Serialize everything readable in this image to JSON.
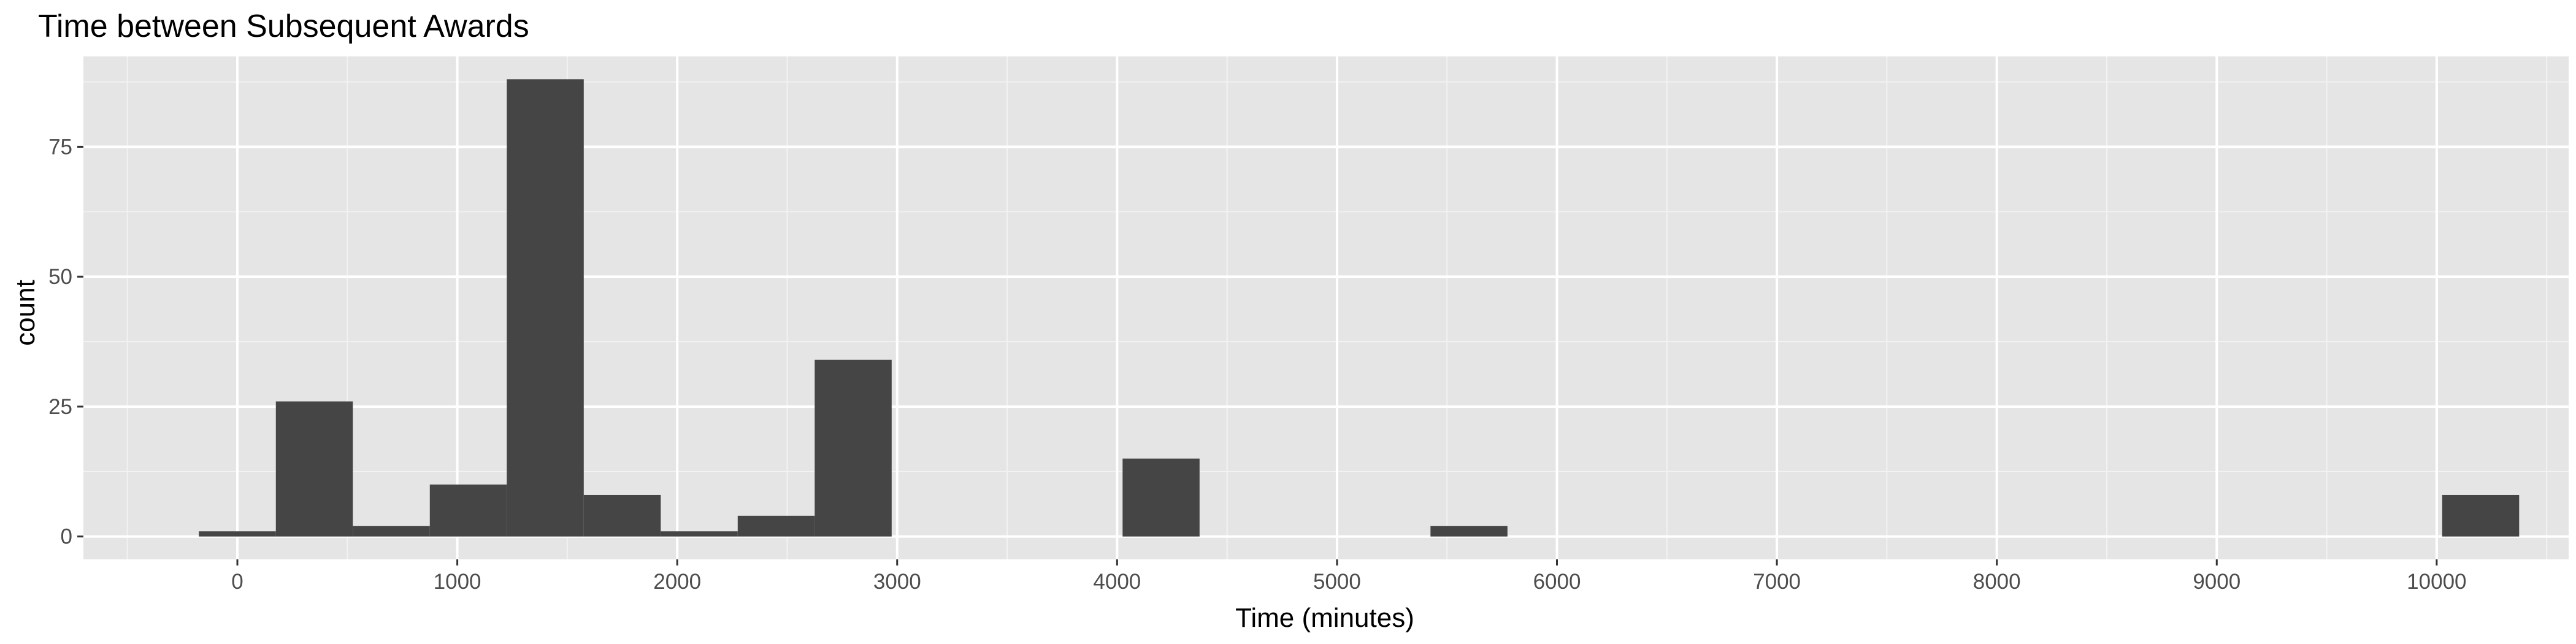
{
  "chart_data": {
    "type": "bar",
    "title": "Time between Subsequent Awards",
    "xlabel": "Time (minutes)",
    "ylabel": "count",
    "xlim": [
      -700,
      10600
    ],
    "ylim": [
      -4.4,
      92.4
    ],
    "x_ticks": [
      0,
      1000,
      2000,
      3000,
      4000,
      5000,
      6000,
      7000,
      8000,
      9000,
      10000
    ],
    "x_tick_labels": [
      "0",
      "1000",
      "2000",
      "3000",
      "4000",
      "5000",
      "6000",
      "7000",
      "8000",
      "9000",
      "10000"
    ],
    "y_ticks": [
      0,
      25,
      50,
      75
    ],
    "y_tick_labels": [
      "0",
      "25",
      "50",
      "75"
    ],
    "bin_width": 350,
    "bins": [
      {
        "x_start": -175,
        "x_end": 175,
        "count": 1
      },
      {
        "x_start": 175,
        "x_end": 525,
        "count": 26
      },
      {
        "x_start": 525,
        "x_end": 875,
        "count": 2
      },
      {
        "x_start": 875,
        "x_end": 1225,
        "count": 10
      },
      {
        "x_start": 1225,
        "x_end": 1575,
        "count": 88
      },
      {
        "x_start": 1575,
        "x_end": 1925,
        "count": 8
      },
      {
        "x_start": 1925,
        "x_end": 2275,
        "count": 1
      },
      {
        "x_start": 2275,
        "x_end": 2625,
        "count": 4
      },
      {
        "x_start": 2625,
        "x_end": 2975,
        "count": 34
      },
      {
        "x_start": 4025,
        "x_end": 4375,
        "count": 15
      },
      {
        "x_start": 5425,
        "x_end": 5775,
        "count": 2
      },
      {
        "x_start": 10025,
        "x_end": 10375,
        "count": 8
      }
    ],
    "grid": true,
    "legend": "none",
    "colors": {
      "panel_background": "#e5e5e5",
      "grid_major": "#ffffff",
      "grid_minor": "#f2f2f2",
      "bar_fill": "#454545",
      "tick_mark": "#333333",
      "tick_label": "#4d4d4d"
    }
  }
}
